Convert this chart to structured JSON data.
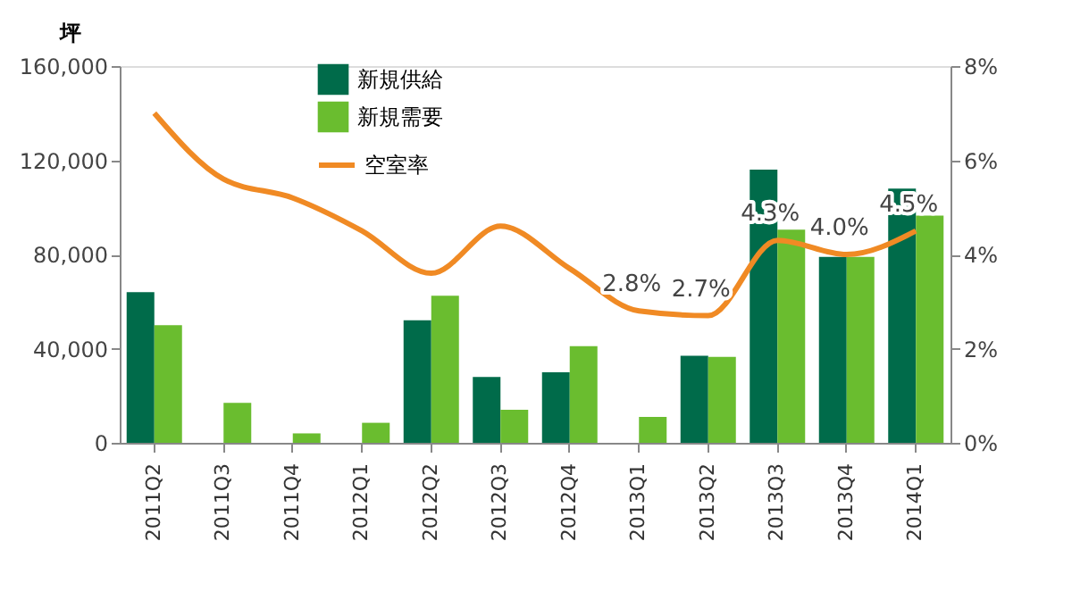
{
  "chart_data": {
    "type": "bar",
    "ylabel": "坪",
    "categories": [
      "2011Q2",
      "2011Q3",
      "2011Q4",
      "2012Q1",
      "2012Q2",
      "2012Q3",
      "2012Q4",
      "2013Q1",
      "2013Q2",
      "2013Q3",
      "2013Q4",
      "2014Q1"
    ],
    "series": [
      {
        "name": "新規供給",
        "color": "#006b4a",
        "values": [
          64000,
          0,
          0,
          0,
          52000,
          28000,
          30000,
          0,
          37000,
          116000,
          79000,
          108000
        ]
      },
      {
        "name": "新規需要",
        "color": "#6abd2f",
        "values": [
          50000,
          17000,
          4000,
          8500,
          62500,
          14000,
          41000,
          11000,
          36500,
          90500,
          79000,
          96500
        ]
      },
      {
        "name": "空室率",
        "type": "line",
        "axis": "y2",
        "color": "#f08a24",
        "values": [
          7.0,
          5.6,
          5.2,
          4.5,
          3.6,
          4.6,
          3.7,
          2.8,
          2.7,
          4.3,
          4.0,
          4.5
        ],
        "value_labels": [
          null,
          null,
          null,
          null,
          null,
          null,
          null,
          "2.8%",
          "2.7%",
          "4.3%",
          "4.0%",
          "4.5%"
        ]
      }
    ],
    "ylim": [
      0,
      160000
    ],
    "yticks": [
      {
        "value": 0,
        "label": "0"
      },
      {
        "value": 40000,
        "label": "40,000"
      },
      {
        "value": 80000,
        "label": "80,000"
      },
      {
        "value": 120000,
        "label": "120,000"
      },
      {
        "value": 160000,
        "label": "160,000"
      }
    ],
    "y2lim": [
      0,
      8
    ],
    "y2ticks": [
      {
        "value": 0,
        "label": "0%"
      },
      {
        "value": 2,
        "label": "2%"
      },
      {
        "value": 4,
        "label": "4%"
      },
      {
        "value": 6,
        "label": "6%"
      },
      {
        "value": 8,
        "label": "8%"
      }
    ],
    "grid": false,
    "legend": "top left",
    "marker": "none"
  }
}
